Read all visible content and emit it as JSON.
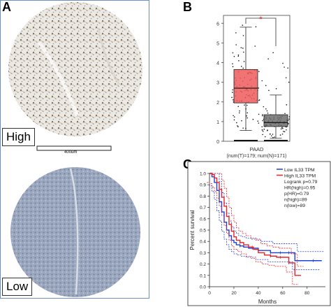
{
  "panels": {
    "a": "A",
    "b": "B",
    "c": "C"
  },
  "panel_a": {
    "high_label": "High",
    "low_label": "Low",
    "scalebar_label": "400um"
  },
  "colors": {
    "tumor_box": "#ee5a5a",
    "normal_box": "#6e6e6e",
    "high_line": "#e8212a",
    "low_line": "#1f3fd6",
    "frame": "#6e8fc4"
  },
  "chart_data": [
    {
      "type": "box",
      "panel": "B",
      "ylim": [
        0,
        6.4
      ],
      "yticks": [
        "0",
        "1",
        "2",
        "3",
        "4",
        "5",
        "6"
      ],
      "xlabel": "PAAD",
      "sample_sizes": "(num(T)=179; num(N)=171)",
      "significance": "*",
      "groups": [
        {
          "name": "Tumor",
          "q1": 1.95,
          "median": 2.7,
          "q3": 3.65,
          "whisker_low": 0.55,
          "whisker_high": 5.8,
          "n": 179
        },
        {
          "name": "Normal",
          "q1": 0.75,
          "median": 0.95,
          "q3": 1.35,
          "whisker_low": 0.15,
          "whisker_high": 2.35,
          "n": 171
        }
      ]
    },
    {
      "type": "line",
      "panel": "C",
      "xlabel": "Months",
      "ylabel": "Percent survival",
      "xlim": [
        0,
        95
      ],
      "ylim": [
        0,
        1.0
      ],
      "xticks": [
        "0",
        "20",
        "40",
        "60",
        "80"
      ],
      "yticks": [
        "0.0",
        "0.1",
        "0.2",
        "0.3",
        "0.4",
        "0.5",
        "0.6",
        "0.7",
        "0.8",
        "0.9",
        "1.0"
      ],
      "legend": [
        "Low IL33 TPM",
        "High IL33 TPM"
      ],
      "stats": [
        "Logrank p=0.79",
        "HR(high)=0.95",
        "p(HR)=0.79",
        "n(high)=89",
        "n(low)=89"
      ],
      "series": [
        {
          "name": "Low IL33 TPM",
          "x": [
            0,
            2,
            4,
            6,
            8,
            10,
            12,
            14,
            16,
            18,
            20,
            22,
            25,
            28,
            32,
            36,
            40,
            45,
            50,
            55,
            60,
            70,
            80,
            92
          ],
          "y": [
            1.0,
            0.97,
            0.92,
            0.85,
            0.75,
            0.66,
            0.57,
            0.5,
            0.45,
            0.41,
            0.39,
            0.37,
            0.36,
            0.35,
            0.34,
            0.34,
            0.32,
            0.32,
            0.3,
            0.3,
            0.3,
            0.23,
            0.23,
            0.23
          ]
        },
        {
          "name": "High IL33 TPM",
          "x": [
            0,
            2,
            4,
            6,
            8,
            10,
            12,
            14,
            16,
            18,
            20,
            22,
            25,
            28,
            32,
            36,
            40,
            45,
            50,
            55,
            60,
            65,
            70,
            75
          ],
          "y": [
            1.0,
            0.99,
            0.96,
            0.92,
            0.86,
            0.79,
            0.71,
            0.62,
            0.55,
            0.49,
            0.44,
            0.41,
            0.39,
            0.37,
            0.35,
            0.33,
            0.3,
            0.28,
            0.27,
            0.26,
            0.26,
            0.21,
            0.1,
            0.1
          ]
        }
      ]
    }
  ]
}
